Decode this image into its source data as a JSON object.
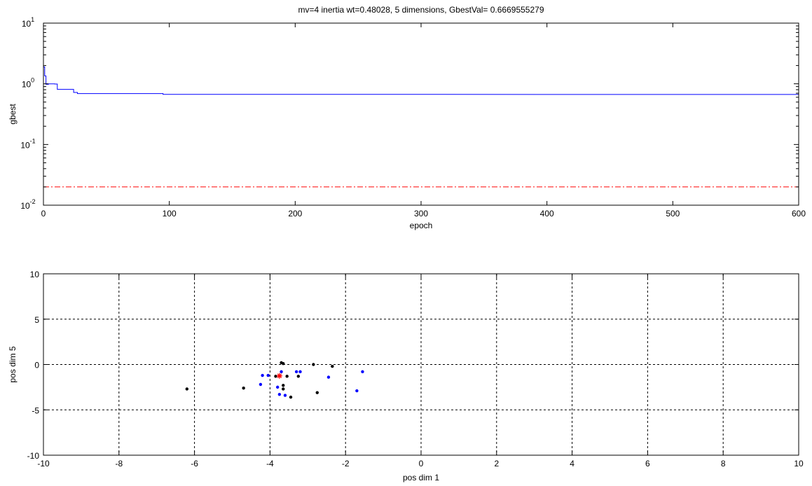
{
  "chart_data": [
    {
      "type": "line",
      "title": "mv=4 inertia wt=0.48028, 5 dimensions, GbestVal= 0.6669555279",
      "xlabel": "epoch",
      "ylabel": "gbest",
      "xlim": [
        0,
        600
      ],
      "ylim": [
        0.01,
        10
      ],
      "yscale": "log",
      "grid": false,
      "xticks": [
        "0",
        "100",
        "200",
        "300",
        "400",
        "500",
        "600"
      ],
      "yticks": [
        {
          "base": "10",
          "exp": "-2"
        },
        {
          "base": "10",
          "exp": "-1"
        },
        {
          "base": "10",
          "exp": "0"
        },
        {
          "base": "10",
          "exp": "1"
        }
      ],
      "series": [
        {
          "color": "#0000ff",
          "style": "solid",
          "x": [
            0,
            1,
            1,
            2,
            2,
            4,
            4,
            9,
            9,
            11,
            11,
            24,
            24,
            27,
            27,
            95,
            95,
            600
          ],
          "y": [
            1.9,
            1.9,
            1.35,
            1.35,
            0.98,
            0.98,
            1.0,
            1.0,
            0.99,
            0.99,
            0.81,
            0.81,
            0.72,
            0.72,
            0.69,
            0.69,
            0.67,
            0.667
          ]
        },
        {
          "color": "#ff0000",
          "style": "dashdot",
          "x": [
            0,
            600
          ],
          "y": [
            0.02,
            0.02
          ]
        }
      ]
    },
    {
      "type": "scatter",
      "title": "",
      "xlabel": "pos dim 1",
      "ylabel": "pos dim 5",
      "xlim": [
        -10,
        10
      ],
      "ylim": [
        -10,
        10
      ],
      "grid": true,
      "xticks": [
        "-10",
        "-8",
        "-6",
        "-4",
        "-2",
        "0",
        "2",
        "4",
        "6",
        "8",
        "10"
      ],
      "yticks": [
        "-10",
        "-5",
        "0",
        "5",
        "10"
      ],
      "series": [
        {
          "color": "#0000ff",
          "marker": "dot",
          "points": [
            [
              -4.2,
              -1.2
            ],
            [
              -4.05,
              -1.2
            ],
            [
              -4.25,
              -2.2
            ],
            [
              -3.8,
              -2.5
            ],
            [
              -3.75,
              -3.3
            ],
            [
              -3.6,
              -3.4
            ],
            [
              -3.3,
              -0.8
            ],
            [
              -3.2,
              -0.8
            ],
            [
              -2.45,
              -1.4
            ],
            [
              -1.7,
              -2.9
            ],
            [
              -1.55,
              -0.8
            ],
            [
              -3.7,
              -0.8
            ]
          ]
        },
        {
          "color": "#000000",
          "marker": "dot",
          "points": [
            [
              -6.2,
              -2.7
            ],
            [
              -4.7,
              -2.6
            ],
            [
              -3.7,
              0.2
            ],
            [
              -3.65,
              0.1
            ],
            [
              -3.65,
              -2.3
            ],
            [
              -3.65,
              -2.7
            ],
            [
              -3.55,
              -1.3
            ],
            [
              -3.45,
              -3.6
            ],
            [
              -3.25,
              -1.3
            ],
            [
              -2.85,
              0.0
            ],
            [
              -2.75,
              -3.1
            ],
            [
              -2.35,
              -0.2
            ],
            [
              -3.85,
              -1.3
            ]
          ]
        },
        {
          "color": "#ff0000",
          "marker": "star",
          "points": [
            [
              -3.75,
              -1.25
            ]
          ]
        }
      ]
    }
  ]
}
